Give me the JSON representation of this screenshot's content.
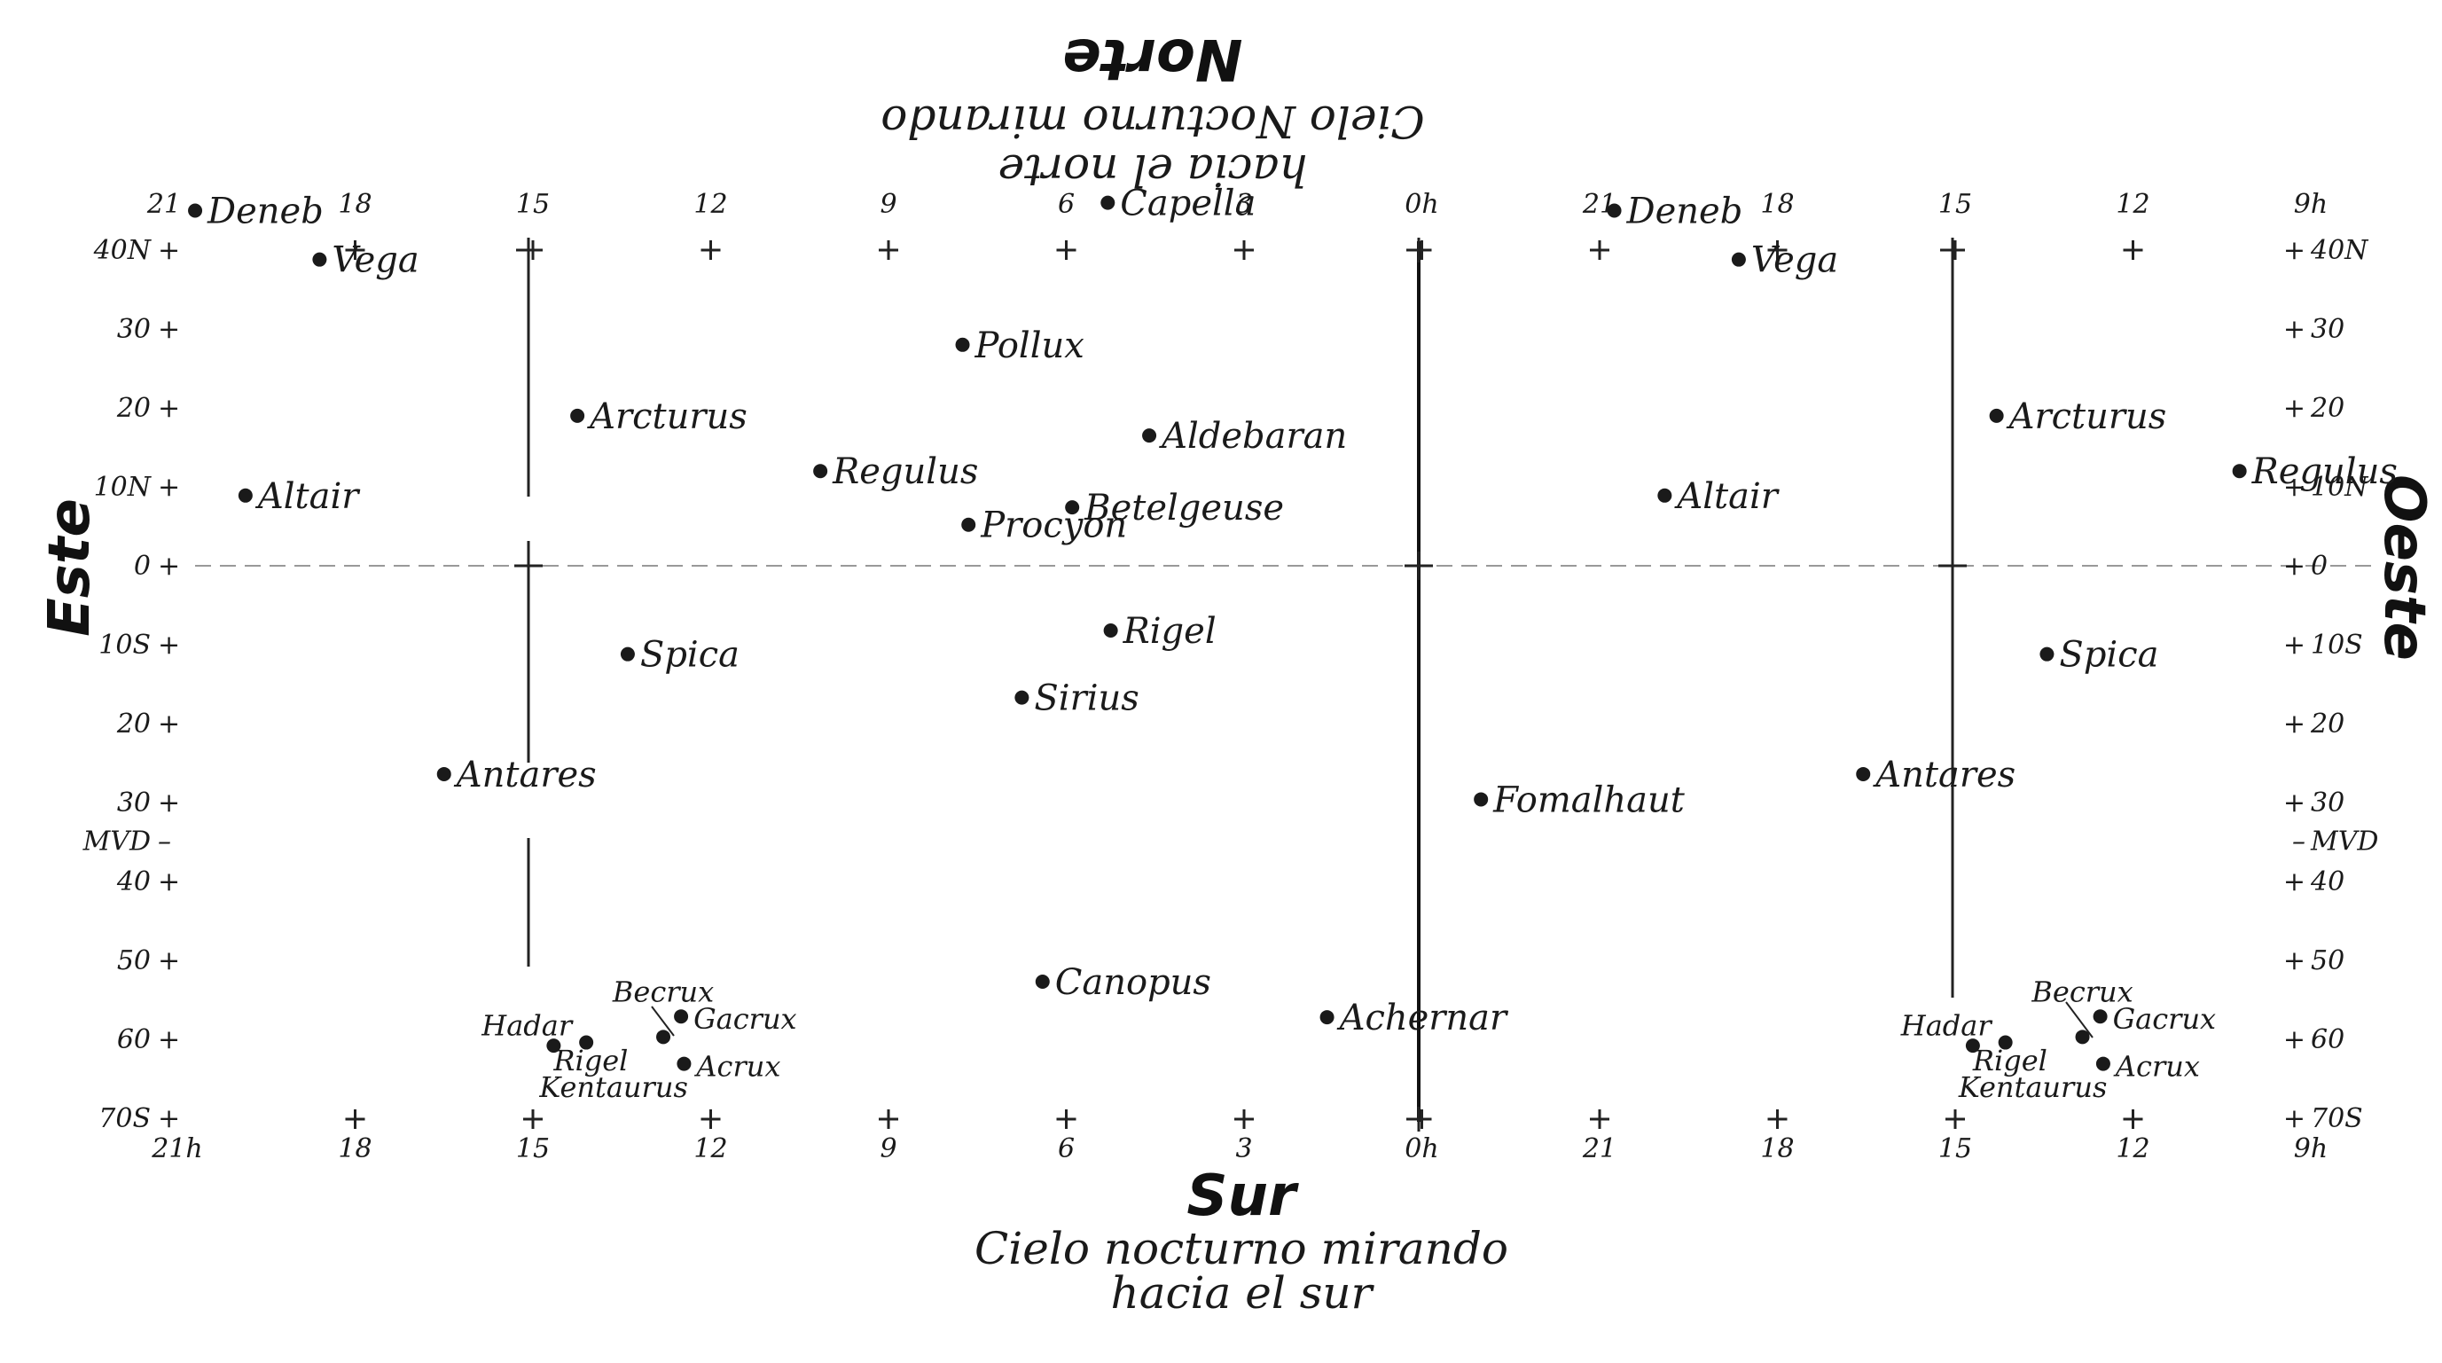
{
  "directions": {
    "north": "Norte",
    "south": "Sur",
    "east": "Este",
    "west": "Oeste"
  },
  "captions": {
    "north_line1": "Cielo Nocturno mirando",
    "north_line2": "hacia el norte",
    "south_line1": "Cielo nocturno mirando",
    "south_line2": "hacia el sur"
  },
  "ra_ticks_top": [
    "21",
    "18",
    "15",
    "12",
    "9",
    "6",
    "3",
    "0h",
    "21",
    "18",
    "15",
    "12",
    "9h"
  ],
  "ra_ticks_bottom": [
    "21h",
    "18",
    "15",
    "12",
    "9",
    "6",
    "3",
    "0h",
    "21",
    "18",
    "15",
    "12",
    "9h"
  ],
  "dec_ticks_left": [
    "40N",
    "30",
    "20",
    "10N",
    "0",
    "10S",
    "20",
    "30",
    "MVD",
    "40",
    "50",
    "60",
    "70S"
  ],
  "dec_ticks_right": [
    "40N",
    "30",
    "20",
    "10N",
    "0",
    "10S",
    "20",
    "30",
    "MVD",
    "40",
    "50",
    "60",
    "70S"
  ],
  "stars_south_panel": [
    {
      "name": "Deneb",
      "ra": 20.7,
      "dec": 45
    },
    {
      "name": "Vega",
      "ra": 18.6,
      "dec": 38.8
    },
    {
      "name": "Capella",
      "ra": 5.3,
      "dec": 46
    },
    {
      "name": "Pollux",
      "ra": 7.75,
      "dec": 28
    },
    {
      "name": "Arcturus",
      "ra": 14.25,
      "dec": 19
    },
    {
      "name": "Regulus",
      "ra": 10.15,
      "dec": 12
    },
    {
      "name": "Aldebaran",
      "ra": 4.6,
      "dec": 16.5
    },
    {
      "name": "Altair",
      "ra": 19.85,
      "dec": 8.9
    },
    {
      "name": "Betelgeuse",
      "ra": 5.9,
      "dec": 7.4
    },
    {
      "name": "Procyon",
      "ra": 7.65,
      "dec": 5.2
    },
    {
      "name": "Rigel",
      "ra": 5.25,
      "dec": -8.2
    },
    {
      "name": "Spica",
      "ra": 13.4,
      "dec": -11.2
    },
    {
      "name": "Sirius",
      "ra": 6.75,
      "dec": -16.7
    },
    {
      "name": "Antares",
      "ra": 16.5,
      "dec": -26.4
    },
    {
      "name": "Canopus",
      "ra": 6.4,
      "dec": -52.7
    },
    {
      "name": "Achernar",
      "ra": 1.6,
      "dec": -57.2
    },
    {
      "name": "Hadar",
      "ra": 14.1,
      "dec": -60.4
    },
    {
      "name": "Becrux",
      "ra": 12.8,
      "dec": -59.7
    },
    {
      "name": "Gacrux",
      "ra": 12.5,
      "dec": -57.1
    },
    {
      "name": "Rigel Kentaurus",
      "ra": 14.65,
      "dec": -60.8
    },
    {
      "name": "Acrux",
      "ra": 12.45,
      "dec": -63.1
    }
  ],
  "stars_north_panel": [
    {
      "name": "Deneb",
      "ra": 20.7,
      "dec": 45
    },
    {
      "name": "Vega",
      "ra": 18.6,
      "dec": 38.8
    },
    {
      "name": "Arcturus",
      "ra": 14.25,
      "dec": 19
    },
    {
      "name": "Regulus",
      "ra": 10.15,
      "dec": 12
    },
    {
      "name": "Altair",
      "ra": 19.85,
      "dec": 8.9
    },
    {
      "name": "Spica",
      "ra": 13.4,
      "dec": -11.2
    },
    {
      "name": "Fomalhaut",
      "ra": 22.95,
      "dec": -29.6
    },
    {
      "name": "Antares",
      "ra": 16.5,
      "dec": -26.4
    },
    {
      "name": "Hadar",
      "ra": 14.1,
      "dec": -60.4
    },
    {
      "name": "Becrux",
      "ra": 12.8,
      "dec": -59.7
    },
    {
      "name": "Gacrux",
      "ra": 12.5,
      "dec": -57.1
    },
    {
      "name": "Rigel Kentaurus",
      "ra": 14.65,
      "dec": -60.8
    },
    {
      "name": "Acrux",
      "ra": 12.45,
      "dec": -63.1
    }
  ]
}
